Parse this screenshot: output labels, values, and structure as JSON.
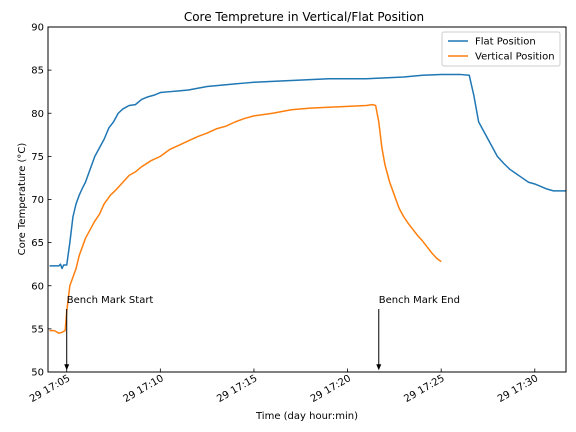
{
  "chart_data": {
    "type": "line",
    "title": "Core Tempreture in Vertical/Flat Position",
    "xlabel": "Time (day hour:min)",
    "ylabel": "Core Temperature (°C)",
    "xlim": [
      "29 17:04:00",
      "29 17:31:40"
    ],
    "ylim": [
      50,
      90
    ],
    "grid": false,
    "legend_position": "top-right",
    "x_ticks": [
      "29 17:05",
      "29 17:10",
      "29 17:15",
      "29 17:20",
      "29 17:25",
      "29 17:30"
    ],
    "y_ticks": [
      50,
      55,
      60,
      65,
      70,
      75,
      80,
      85,
      90
    ],
    "series": [
      {
        "name": "Flat Position",
        "color": "#1f77b4",
        "x": [
          "29 17:04:05",
          "29 17:04:35",
          "29 17:04:40",
          "29 17:04:45",
          "29 17:04:50",
          "29 17:05:00",
          "29 17:05:10",
          "29 17:05:20",
          "29 17:05:30",
          "29 17:05:40",
          "29 17:05:50",
          "29 17:06:00",
          "29 17:06:10",
          "29 17:06:20",
          "29 17:06:30",
          "29 17:06:45",
          "29 17:07:00",
          "29 17:07:15",
          "29 17:07:30",
          "29 17:07:45",
          "29 17:08:00",
          "29 17:08:20",
          "29 17:08:40",
          "29 17:09:00",
          "29 17:09:20",
          "29 17:09:40",
          "29 17:10:00",
          "29 17:10:30",
          "29 17:11:00",
          "29 17:11:30",
          "29 17:12:00",
          "29 17:12:30",
          "29 17:13:00",
          "29 17:13:30",
          "29 17:14:00",
          "29 17:14:30",
          "29 17:15:00",
          "29 17:16:00",
          "29 17:17:00",
          "29 17:18:00",
          "29 17:19:00",
          "29 17:20:00",
          "29 17:21:00",
          "29 17:22:00",
          "29 17:23:00",
          "29 17:24:00",
          "29 17:25:00",
          "29 17:26:00",
          "29 17:26:30",
          "29 17:26:45",
          "29 17:27:00",
          "29 17:27:15",
          "29 17:27:30",
          "29 17:27:45",
          "29 17:28:00",
          "29 17:28:20",
          "29 17:28:40",
          "29 17:29:00",
          "29 17:29:20",
          "29 17:29:40",
          "29 17:30:00",
          "29 17:30:20",
          "29 17:30:40",
          "29 17:31:00",
          "29 17:31:20",
          "29 17:31:40"
        ],
        "y": [
          62.3,
          62.3,
          62.5,
          62.0,
          62.4,
          62.4,
          65.0,
          68.0,
          69.5,
          70.5,
          71.3,
          72.0,
          73.0,
          74.0,
          75.0,
          76.0,
          77.0,
          78.3,
          79.0,
          80.0,
          80.5,
          80.9,
          81.0,
          81.6,
          81.9,
          82.1,
          82.4,
          82.5,
          82.6,
          82.7,
          82.9,
          83.1,
          83.2,
          83.3,
          83.4,
          83.5,
          83.6,
          83.7,
          83.8,
          83.9,
          84.0,
          84.0,
          84.0,
          84.1,
          84.2,
          84.4,
          84.5,
          84.5,
          84.4,
          82.0,
          79.0,
          78.0,
          77.0,
          76.0,
          75.0,
          74.2,
          73.5,
          73.0,
          72.5,
          72.0,
          71.8,
          71.5,
          71.2,
          71.0,
          71.0,
          71.0
        ]
      },
      {
        "name": "Vertical Position",
        "color": "#ff7f0e",
        "x": [
          "29 17:04:05",
          "29 17:04:20",
          "29 17:04:35",
          "29 17:04:45",
          "29 17:04:55",
          "29 17:05:00",
          "29 17:05:10",
          "29 17:05:20",
          "29 17:05:30",
          "29 17:05:40",
          "29 17:05:50",
          "29 17:06:00",
          "29 17:06:15",
          "29 17:06:30",
          "29 17:06:45",
          "29 17:07:00",
          "29 17:07:20",
          "29 17:07:40",
          "29 17:08:00",
          "29 17:08:20",
          "29 17:08:40",
          "29 17:09:00",
          "29 17:09:30",
          "29 17:10:00",
          "29 17:10:30",
          "29 17:11:00",
          "29 17:11:30",
          "29 17:12:00",
          "29 17:12:30",
          "29 17:13:00",
          "29 17:13:30",
          "29 17:14:00",
          "29 17:14:30",
          "29 17:15:00",
          "29 17:16:00",
          "29 17:17:00",
          "29 17:18:00",
          "29 17:19:00",
          "29 17:20:00",
          "29 17:21:00",
          "29 17:21:20",
          "29 17:21:30",
          "29 17:21:40",
          "29 17:21:50",
          "29 17:22:00",
          "29 17:22:15",
          "29 17:22:30",
          "29 17:22:45",
          "29 17:23:00",
          "29 17:23:15",
          "29 17:23:30",
          "29 17:23:45",
          "29 17:24:00",
          "29 17:24:15",
          "29 17:24:30",
          "29 17:24:45",
          "29 17:25:00"
        ],
        "y": [
          54.8,
          54.8,
          54.5,
          54.6,
          54.8,
          57.0,
          60.0,
          61.0,
          62.0,
          63.5,
          64.5,
          65.5,
          66.5,
          67.5,
          68.3,
          69.5,
          70.5,
          71.2,
          72.0,
          72.8,
          73.2,
          73.8,
          74.5,
          75.0,
          75.8,
          76.3,
          76.8,
          77.3,
          77.7,
          78.2,
          78.5,
          79.0,
          79.4,
          79.7,
          80.0,
          80.4,
          80.6,
          80.7,
          80.8,
          80.9,
          81.0,
          80.9,
          79.0,
          76.0,
          74.0,
          72.0,
          70.5,
          69.0,
          68.0,
          67.2,
          66.5,
          65.8,
          65.2,
          64.5,
          63.8,
          63.2,
          62.8
        ]
      }
    ],
    "annotations": [
      {
        "text": "Bench Mark Start",
        "x": "29 17:05:00",
        "y": 50.2
      },
      {
        "text": "Bench Mark End",
        "x": "29 17:21:40",
        "y": 50.2
      }
    ]
  }
}
